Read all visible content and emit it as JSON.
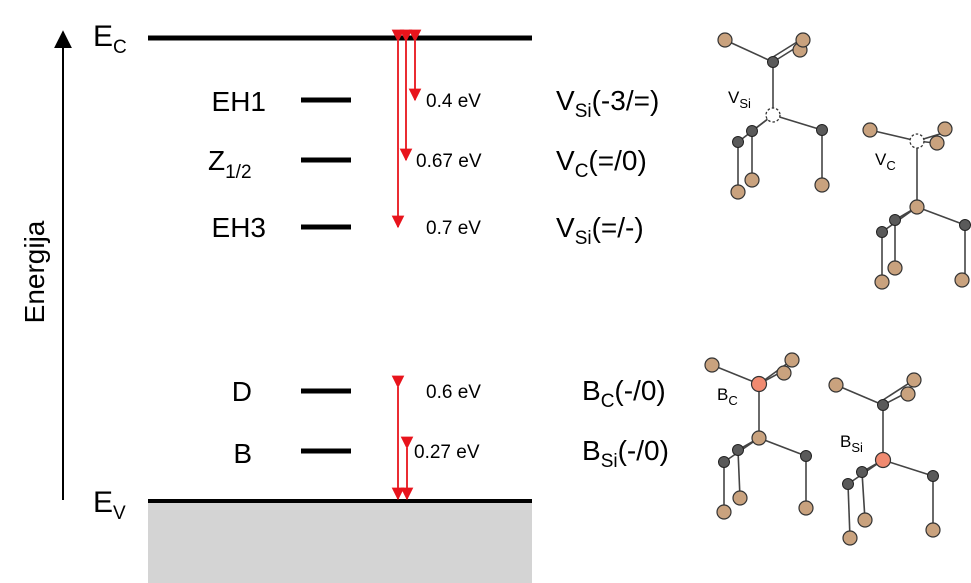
{
  "axis": {
    "label": "Energija",
    "conduction_band": {
      "main": "E",
      "sub": "C"
    },
    "valence_band": {
      "main": "E",
      "sub": "V"
    }
  },
  "levels": [
    {
      "main": "EH1",
      "sub": "",
      "energy": "0.4 eV",
      "defect_main": "V",
      "defect_sub": "Si",
      "defect_rest": "(-3/=)"
    },
    {
      "main": "Z",
      "sub": "1/2",
      "energy": "0.67 eV",
      "defect_main": "V",
      "defect_sub": "C",
      "defect_rest": "(=/0)"
    },
    {
      "main": "EH3",
      "sub": "",
      "energy": "0.7 eV",
      "defect_main": "V",
      "defect_sub": "Si",
      "defect_rest": "(=/-)"
    },
    {
      "main": "D",
      "sub": "",
      "energy": "0.6 eV",
      "defect_main": "B",
      "defect_sub": "C",
      "defect_rest": "(-/0)"
    },
    {
      "main": "B",
      "sub": "",
      "energy": "0.27 eV",
      "defect_main": "B",
      "defect_sub": "Si",
      "defect_rest": "(-/0)"
    }
  ],
  "structures": [
    {
      "main": "V",
      "sub": "Si"
    },
    {
      "main": "V",
      "sub": "C"
    },
    {
      "main": "B",
      "sub": "C"
    },
    {
      "main": "B",
      "sub": "Si"
    }
  ],
  "colors": {
    "arrow": "#e8141c",
    "atom_tan": "#c9a27e",
    "atom_dark": "#5a5a5a",
    "atom_boron": "#f08a70",
    "band_fill": "#d4d4d4"
  }
}
